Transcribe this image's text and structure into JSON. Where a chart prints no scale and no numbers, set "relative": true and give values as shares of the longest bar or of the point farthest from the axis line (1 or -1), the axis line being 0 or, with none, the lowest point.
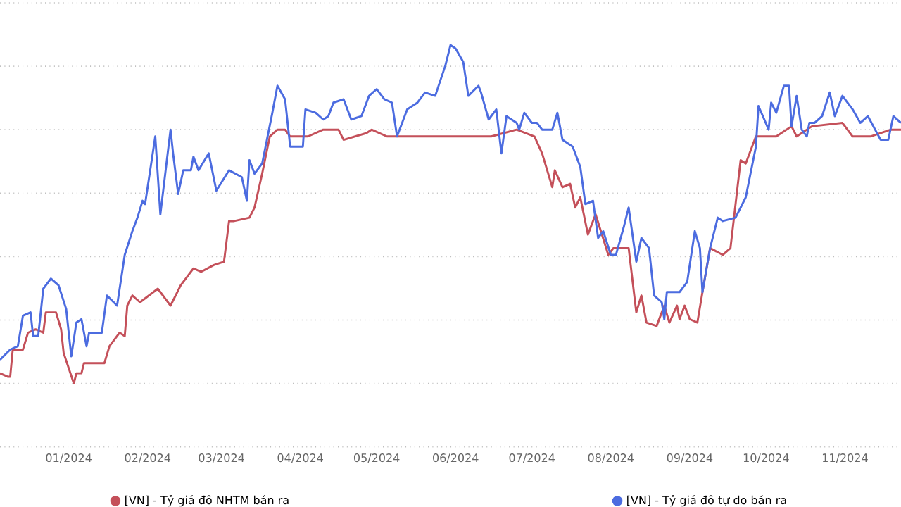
{
  "chart_data": {
    "type": "line",
    "relative": true,
    "grid": "y",
    "legend": "bottom",
    "xlim": [
      "2023-12-05",
      "2024-11-23"
    ],
    "xticks": [
      {
        "value": "2024-01-01",
        "label": "01/2024"
      },
      {
        "value": "2024-02-01",
        "label": "02/2024"
      },
      {
        "value": "2024-03-01",
        "label": "03/2024"
      },
      {
        "value": "2024-04-01",
        "label": "04/2024"
      },
      {
        "value": "2024-05-01",
        "label": "05/2024"
      },
      {
        "value": "2024-06-01",
        "label": "06/2024"
      },
      {
        "value": "2024-07-01",
        "label": "07/2024"
      },
      {
        "value": "2024-08-01",
        "label": "08/2024"
      },
      {
        "value": "2024-09-01",
        "label": "09/2024"
      },
      {
        "value": "2024-10-01",
        "label": "10/2024"
      },
      {
        "value": "2024-11-01",
        "label": "11/2024"
      }
    ],
    "series": [
      {
        "name": "[VN] - Tỷ giá đô NHTM bán ra",
        "color": "#c4505a",
        "x": [
          "2023-12-05",
          "2023-12-08",
          "2023-12-09",
          "2023-12-10",
          "2023-12-14",
          "2023-12-16",
          "2023-12-19",
          "2023-12-22",
          "2023-12-23",
          "2023-12-27",
          "2023-12-29",
          "2023-12-30",
          "2024-01-03",
          "2024-01-04",
          "2024-01-06",
          "2024-01-07",
          "2024-01-15",
          "2024-01-17",
          "2024-01-21",
          "2024-01-23",
          "2024-01-24",
          "2024-01-26",
          "2024-01-29",
          "2024-02-05",
          "2024-02-10",
          "2024-02-14",
          "2024-02-19",
          "2024-02-22",
          "2024-02-27",
          "2024-03-02",
          "2024-03-04",
          "2024-03-06",
          "2024-03-12",
          "2024-03-14",
          "2024-03-17",
          "2024-03-20",
          "2024-03-23",
          "2024-03-26",
          "2024-03-28",
          "2024-04-04",
          "2024-04-10",
          "2024-04-16",
          "2024-04-18",
          "2024-04-27",
          "2024-04-29",
          "2024-05-05",
          "2024-05-13",
          "2024-05-19",
          "2024-05-30",
          "2024-06-07",
          "2024-06-15",
          "2024-06-25",
          "2024-07-02",
          "2024-07-05",
          "2024-07-09",
          "2024-07-10",
          "2024-07-13",
          "2024-07-16",
          "2024-07-18",
          "2024-07-20",
          "2024-07-23",
          "2024-07-26",
          "2024-07-31",
          "2024-08-02",
          "2024-08-08",
          "2024-08-11",
          "2024-08-13",
          "2024-08-15",
          "2024-08-19",
          "2024-08-22",
          "2024-08-24",
          "2024-08-27",
          "2024-08-28",
          "2024-08-30",
          "2024-09-01",
          "2024-09-04",
          "2024-09-06",
          "2024-09-09",
          "2024-09-14",
          "2024-09-17",
          "2024-09-21",
          "2024-09-23",
          "2024-09-27",
          "2024-09-30",
          "2024-10-05",
          "2024-10-11",
          "2024-10-13",
          "2024-10-19",
          "2024-10-31",
          "2024-11-04",
          "2024-11-11",
          "2024-11-19",
          "2024-11-23"
        ],
        "values": [
          0.03,
          0.02,
          0.02,
          0.1,
          0.1,
          0.15,
          0.16,
          0.15,
          0.21,
          0.21,
          0.16,
          0.09,
          0.0,
          0.03,
          0.03,
          0.06,
          0.06,
          0.11,
          0.15,
          0.14,
          0.23,
          0.26,
          0.24,
          0.28,
          0.23,
          0.29,
          0.34,
          0.33,
          0.35,
          0.36,
          0.48,
          0.48,
          0.49,
          0.52,
          0.62,
          0.73,
          0.75,
          0.75,
          0.73,
          0.73,
          0.75,
          0.75,
          0.72,
          0.74,
          0.75,
          0.73,
          0.73,
          0.73,
          0.73,
          0.73,
          0.73,
          0.75,
          0.73,
          0.68,
          0.58,
          0.63,
          0.58,
          0.59,
          0.52,
          0.55,
          0.44,
          0.5,
          0.38,
          0.4,
          0.4,
          0.21,
          0.26,
          0.18,
          0.17,
          0.23,
          0.18,
          0.23,
          0.19,
          0.23,
          0.19,
          0.18,
          0.27,
          0.4,
          0.38,
          0.4,
          0.66,
          0.65,
          0.73,
          0.73,
          0.73,
          0.76,
          0.73,
          0.76,
          0.77,
          0.73,
          0.73,
          0.75,
          0.75
        ]
      },
      {
        "name": "[VN] - Tỷ giá đô tự do bán ra",
        "color": "#4c6ce0",
        "x": [
          "2023-12-05",
          "2023-12-09",
          "2023-12-12",
          "2023-12-14",
          "2023-12-17",
          "2023-12-18",
          "2023-12-20",
          "2023-12-22",
          "2023-12-25",
          "2023-12-28",
          "2023-12-31",
          "2024-01-02",
          "2024-01-04",
          "2024-01-06",
          "2024-01-08",
          "2024-01-09",
          "2024-01-14",
          "2024-01-16",
          "2024-01-20",
          "2024-01-23",
          "2024-01-26",
          "2024-01-28",
          "2024-01-30",
          "2024-01-31",
          "2024-02-04",
          "2024-02-06",
          "2024-02-10",
          "2024-02-11",
          "2024-02-13",
          "2024-02-15",
          "2024-02-18",
          "2024-02-19",
          "2024-02-21",
          "2024-02-25",
          "2024-02-28",
          "2024-03-04",
          "2024-03-09",
          "2024-03-11",
          "2024-03-12",
          "2024-03-14",
          "2024-03-17",
          "2024-03-21",
          "2024-03-23",
          "2024-03-26",
          "2024-03-28",
          "2024-04-02",
          "2024-04-03",
          "2024-04-07",
          "2024-04-10",
          "2024-04-12",
          "2024-04-14",
          "2024-04-18",
          "2024-04-21",
          "2024-04-25",
          "2024-04-28",
          "2024-05-01",
          "2024-05-04",
          "2024-05-07",
          "2024-05-09",
          "2024-05-13",
          "2024-05-17",
          "2024-05-20",
          "2024-05-24",
          "2024-05-28",
          "2024-05-30",
          "2024-06-01",
          "2024-06-04",
          "2024-06-06",
          "2024-06-10",
          "2024-06-11",
          "2024-06-14",
          "2024-06-17",
          "2024-06-19",
          "2024-06-21",
          "2024-06-25",
          "2024-06-26",
          "2024-06-28",
          "2024-07-01",
          "2024-07-03",
          "2024-07-05",
          "2024-07-09",
          "2024-07-11",
          "2024-07-13",
          "2024-07-17",
          "2024-07-20",
          "2024-07-22",
          "2024-07-25",
          "2024-07-27",
          "2024-07-29",
          "2024-08-01",
          "2024-08-03",
          "2024-08-06",
          "2024-08-08",
          "2024-08-11",
          "2024-08-13",
          "2024-08-16",
          "2024-08-18",
          "2024-08-21",
          "2024-08-22",
          "2024-08-23",
          "2024-08-28",
          "2024-08-31",
          "2024-09-03",
          "2024-09-05",
          "2024-09-06",
          "2024-09-09",
          "2024-09-12",
          "2024-09-14",
          "2024-09-19",
          "2024-09-23",
          "2024-09-27",
          "2024-09-28",
          "2024-10-02",
          "2024-10-03",
          "2024-10-05",
          "2024-10-08",
          "2024-10-10",
          "2024-10-11",
          "2024-10-13",
          "2024-10-15",
          "2024-10-17",
          "2024-10-18",
          "2024-10-20",
          "2024-10-23",
          "2024-10-26",
          "2024-10-28",
          "2024-10-31",
          "2024-11-04",
          "2024-11-07",
          "2024-11-10",
          "2024-11-15",
          "2024-11-18",
          "2024-11-20",
          "2024-11-23"
        ],
        "values": [
          0.07,
          0.1,
          0.11,
          0.2,
          0.21,
          0.14,
          0.14,
          0.28,
          0.31,
          0.29,
          0.22,
          0.08,
          0.18,
          0.19,
          0.11,
          0.15,
          0.15,
          0.26,
          0.23,
          0.38,
          0.45,
          0.49,
          0.54,
          0.53,
          0.73,
          0.5,
          0.75,
          0.68,
          0.56,
          0.63,
          0.63,
          0.67,
          0.63,
          0.68,
          0.57,
          0.63,
          0.61,
          0.54,
          0.66,
          0.62,
          0.65,
          0.8,
          0.88,
          0.84,
          0.7,
          0.7,
          0.81,
          0.8,
          0.78,
          0.79,
          0.83,
          0.84,
          0.78,
          0.79,
          0.85,
          0.87,
          0.84,
          0.83,
          0.73,
          0.81,
          0.83,
          0.86,
          0.85,
          0.94,
          1.0,
          0.99,
          0.95,
          0.85,
          0.88,
          0.86,
          0.78,
          0.81,
          0.68,
          0.79,
          0.77,
          0.75,
          0.8,
          0.77,
          0.77,
          0.75,
          0.75,
          0.8,
          0.72,
          0.7,
          0.64,
          0.53,
          0.54,
          0.43,
          0.45,
          0.38,
          0.38,
          0.46,
          0.52,
          0.36,
          0.43,
          0.4,
          0.26,
          0.24,
          0.19,
          0.27,
          0.27,
          0.3,
          0.45,
          0.4,
          0.27,
          0.4,
          0.49,
          0.48,
          0.49,
          0.55,
          0.7,
          0.82,
          0.75,
          0.83,
          0.8,
          0.88,
          0.88,
          0.76,
          0.85,
          0.75,
          0.73,
          0.77,
          0.77,
          0.79,
          0.86,
          0.79,
          0.85,
          0.81,
          0.77,
          0.79,
          0.72,
          0.72,
          0.79,
          0.77
        ]
      }
    ]
  }
}
